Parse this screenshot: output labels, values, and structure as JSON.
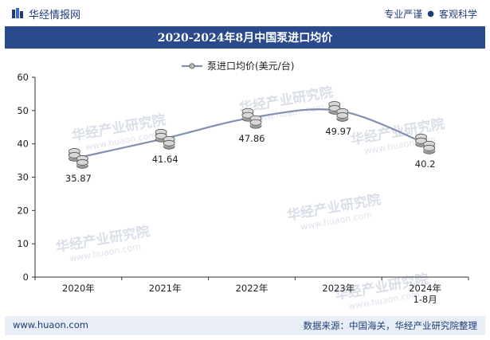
{
  "header": {
    "brand_name": "华经情报网",
    "tag_left": "专业严谨",
    "tag_sep": "●",
    "tag_right": "客观科学"
  },
  "footer": {
    "website": "www.huaon.com",
    "source": "数据来源：中国海关，华经产业研究院整理"
  },
  "watermark": {
    "text_cn": "华经产业研究院",
    "text_en": "www.huaon.com"
  },
  "colors": {
    "brand": "#1c3d7a",
    "title_bg": "#2a4a8c",
    "line": "#8090b0",
    "axis": "#333333"
  },
  "chart_data": {
    "type": "line",
    "title": "2020-2024年8月中国泵进口均价",
    "categories": [
      "2020年",
      "2021年",
      "2022年",
      "2023年",
      "2024年\n1-8月"
    ],
    "series": [
      {
        "name": "泵进口均价(美元/台)",
        "values": [
          35.87,
          41.64,
          47.86,
          49.97,
          40.2
        ]
      }
    ],
    "data_labels": [
      "35.87",
      "41.64",
      "47.86",
      "49.97",
      "40.2"
    ],
    "ylim": [
      0,
      60
    ],
    "yticks": [
      0,
      10,
      20,
      30,
      40,
      50,
      60
    ],
    "xlabel": "",
    "ylabel": "",
    "legend_position": "top-center",
    "grid": false
  }
}
